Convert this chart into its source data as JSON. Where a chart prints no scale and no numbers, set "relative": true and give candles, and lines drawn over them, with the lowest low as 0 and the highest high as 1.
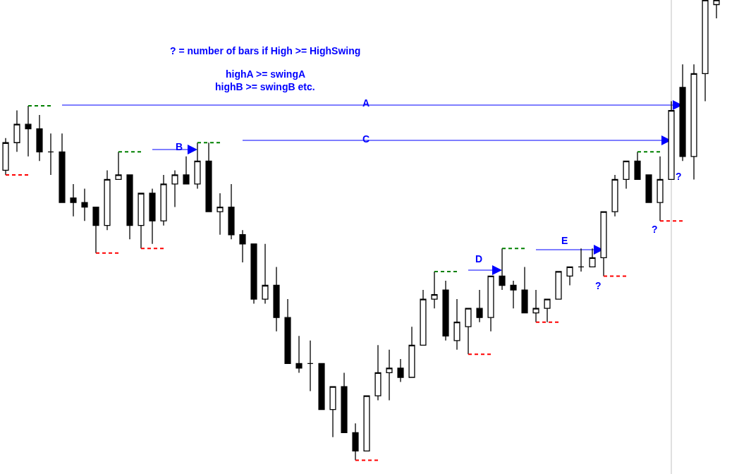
{
  "chart_data": {
    "type": "candlestick",
    "relative": true,
    "categories": [
      null,
      null,
      null,
      null,
      null,
      null,
      null,
      null,
      null,
      null,
      null,
      null,
      null,
      null,
      null,
      null,
      null,
      null,
      null,
      null,
      null,
      null,
      null,
      null,
      null,
      null,
      null,
      null,
      null,
      null,
      null,
      null,
      null,
      null,
      null,
      null,
      null,
      null,
      null,
      null,
      null,
      null,
      null,
      null,
      null,
      null,
      null,
      null,
      null,
      null,
      null,
      null,
      null,
      null,
      null,
      null,
      null,
      null,
      null,
      null,
      null,
      null,
      null,
      null
    ],
    "ohlc": [
      [
        0.63,
        0.7,
        0.62,
        0.69
      ],
      [
        0.69,
        0.76,
        0.67,
        0.73
      ],
      [
        0.73,
        0.77,
        0.66,
        0.72
      ],
      [
        0.72,
        0.75,
        0.65,
        0.67
      ],
      [
        0.67,
        0.71,
        0.62,
        0.67
      ],
      [
        0.67,
        0.71,
        0.56,
        0.56
      ],
      [
        0.57,
        0.6,
        0.53,
        0.56
      ],
      [
        0.56,
        0.59,
        0.52,
        0.55
      ],
      [
        0.55,
        0.55,
        0.45,
        0.51
      ],
      [
        0.51,
        0.63,
        0.5,
        0.61
      ],
      [
        0.61,
        0.67,
        0.61,
        0.62
      ],
      [
        0.62,
        0.62,
        0.48,
        0.51
      ],
      [
        0.51,
        0.58,
        0.46,
        0.58
      ],
      [
        0.58,
        0.59,
        0.47,
        0.52
      ],
      [
        0.52,
        0.62,
        0.51,
        0.6
      ],
      [
        0.6,
        0.63,
        0.55,
        0.62
      ],
      [
        0.62,
        0.66,
        0.6,
        0.6
      ],
      [
        0.6,
        0.69,
        0.59,
        0.65
      ],
      [
        0.65,
        0.69,
        0.54,
        0.54
      ],
      [
        0.54,
        0.58,
        0.49,
        0.55
      ],
      [
        0.55,
        0.6,
        0.48,
        0.49
      ],
      [
        0.49,
        0.5,
        0.43,
        0.47
      ],
      [
        0.47,
        0.47,
        0.34,
        0.35
      ],
      [
        0.35,
        0.47,
        0.34,
        0.38
      ],
      [
        0.38,
        0.42,
        0.28,
        0.31
      ],
      [
        0.31,
        0.35,
        0.21,
        0.21
      ],
      [
        0.21,
        0.27,
        0.19,
        0.2
      ],
      [
        0.21,
        0.26,
        0.15,
        0.21
      ],
      [
        0.21,
        0.21,
        0.11,
        0.11
      ],
      [
        0.11,
        0.16,
        0.05,
        0.16
      ],
      [
        0.16,
        0.19,
        0.06,
        0.06
      ],
      [
        0.06,
        0.08,
        0,
        0.02
      ],
      [
        0.02,
        0.14,
        0.02,
        0.14
      ],
      [
        0.14,
        0.25,
        0.13,
        0.19
      ],
      [
        0.19,
        0.24,
        0.13,
        0.2
      ],
      [
        0.2,
        0.22,
        0.17,
        0.18
      ],
      [
        0.18,
        0.29,
        0.18,
        0.25
      ],
      [
        0.25,
        0.37,
        0.25,
        0.35
      ],
      [
        0.35,
        0.41,
        0.33,
        0.36
      ],
      [
        0.37,
        0.39,
        0.26,
        0.27
      ],
      [
        0.26,
        0.35,
        0.24,
        0.3
      ],
      [
        0.29,
        0.33,
        0.23,
        0.33
      ],
      [
        0.33,
        0.37,
        0.3,
        0.31
      ],
      [
        0.31,
        0.4,
        0.28,
        0.4
      ],
      [
        0.4,
        0.46,
        0.37,
        0.38
      ],
      [
        0.38,
        0.39,
        0.33,
        0.37
      ],
      [
        0.37,
        0.42,
        0.32,
        0.32
      ],
      [
        0.32,
        0.37,
        0.3,
        0.33
      ],
      [
        0.33,
        0.35,
        0.3,
        0.35
      ],
      [
        0.35,
        0.41,
        0.35,
        0.41
      ],
      [
        0.4,
        0.42,
        0.38,
        0.42
      ],
      [
        0.42,
        0.46,
        0.41,
        0.42
      ],
      [
        0.42,
        0.46,
        0.42,
        0.44
      ],
      [
        0.44,
        0.54,
        0.4,
        0.54
      ],
      [
        0.54,
        0.62,
        0.53,
        0.61
      ],
      [
        0.61,
        0.65,
        0.59,
        0.65
      ],
      [
        0.65,
        0.67,
        0.61,
        0.61
      ],
      [
        0.62,
        0.62,
        0.56,
        0.56
      ],
      [
        0.56,
        0.66,
        0.52,
        0.61
      ],
      [
        0.61,
        0.78,
        0.61,
        0.76
      ],
      [
        0.81,
        0.86,
        0.65,
        0.66
      ],
      [
        0.66,
        0.86,
        0.61,
        0.84
      ],
      [
        0.84,
        1,
        0.78,
        1
      ],
      [
        0.99,
        1,
        0.96,
        1
      ]
    ],
    "series": [
      {
        "type": "line",
        "color": "#008000",
        "line_style": "dashed",
        "values": [
          null,
          null,
          0.77,
          0.77,
          0.77,
          null,
          null,
          null,
          null,
          null,
          0.67,
          0.67,
          0.67,
          null,
          null,
          null,
          null,
          0.69,
          0.69,
          0.69,
          null,
          null,
          null,
          null,
          null,
          null,
          null,
          null,
          null,
          null,
          null,
          null,
          null,
          null,
          null,
          null,
          null,
          null,
          0.41,
          0.41,
          0.41,
          null,
          null,
          null,
          0.46,
          0.46,
          0.46,
          null,
          null,
          null,
          null,
          null,
          null,
          null,
          null,
          null,
          0.67,
          0.67,
          0.67,
          null,
          null,
          null,
          null,
          null
        ]
      },
      {
        "type": "line",
        "color": "#ff0000",
        "line_style": "dashed",
        "values": [
          0.62,
          0.62,
          0.62,
          null,
          null,
          null,
          null,
          null,
          0.45,
          0.45,
          0.45,
          null,
          0.46,
          0.46,
          0.46,
          null,
          null,
          null,
          null,
          null,
          null,
          null,
          null,
          null,
          null,
          null,
          null,
          null,
          null,
          null,
          null,
          0,
          0,
          0,
          null,
          null,
          null,
          null,
          null,
          null,
          null,
          0.23,
          0.23,
          0.23,
          null,
          null,
          null,
          0.3,
          0.3,
          0.3,
          null,
          null,
          null,
          0.4,
          0.4,
          0.4,
          null,
          null,
          0.52,
          0.52,
          0.52,
          null,
          null,
          null
        ]
      }
    ],
    "annotations": [
      "? = number of bars if High >= HighSwing",
      "highA >= swingA",
      "highB >= swingB etc.",
      "A",
      "B",
      "C",
      "D",
      "E",
      "?",
      "?",
      "?"
    ]
  }
}
